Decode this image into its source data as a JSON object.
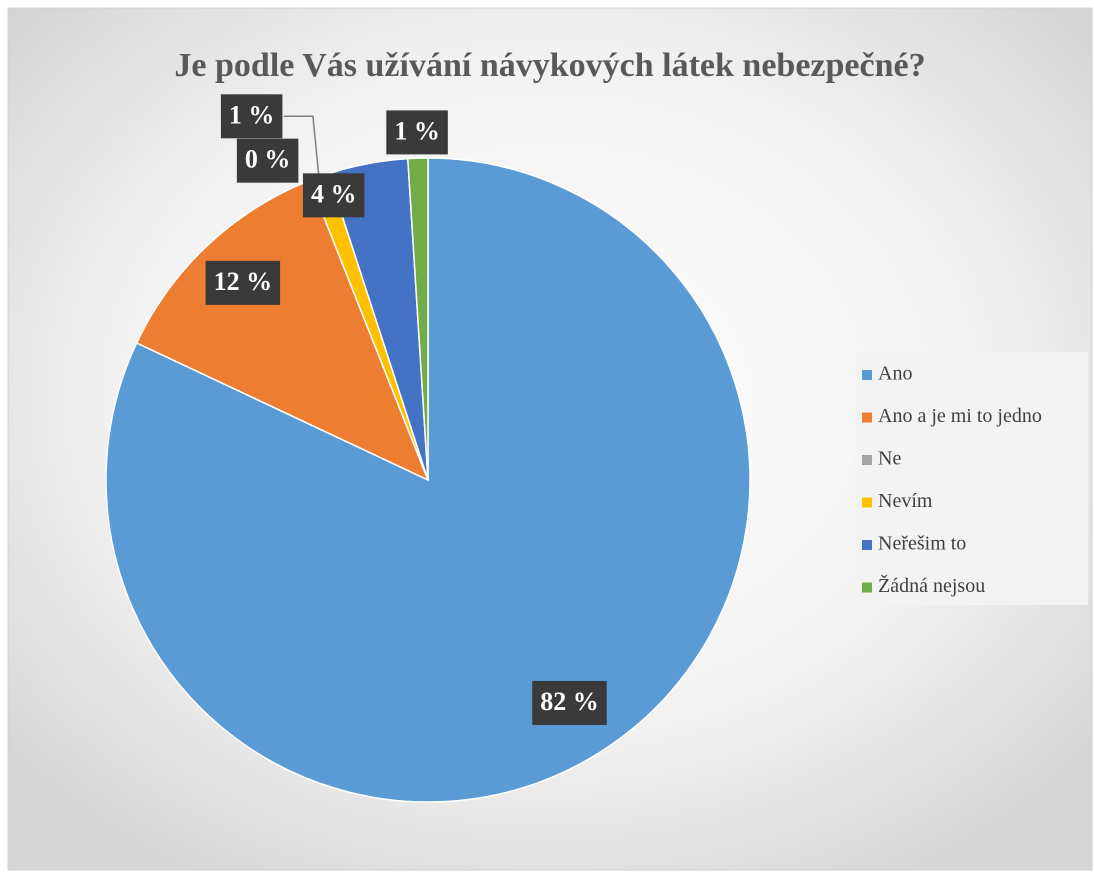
{
  "chart_data": {
    "type": "pie",
    "title": "Je podle Vás užívání návykových látek nebezpečné?",
    "categories": [
      "Ano",
      "Ano a je mi to jedno",
      "Ne",
      "Nevím",
      "Neřešim to",
      "Žádná nejsou"
    ],
    "values": [
      82,
      12,
      0,
      1,
      4,
      1
    ],
    "value_labels": [
      "82 %",
      "12 %",
      "0 %",
      "1 %",
      "4 %",
      "1 %"
    ],
    "colors": [
      "#5b9bd5",
      "#ed7d31",
      "#a5a5a5",
      "#ffc000",
      "#4472c4",
      "#70ad47"
    ],
    "legend": "right"
  }
}
